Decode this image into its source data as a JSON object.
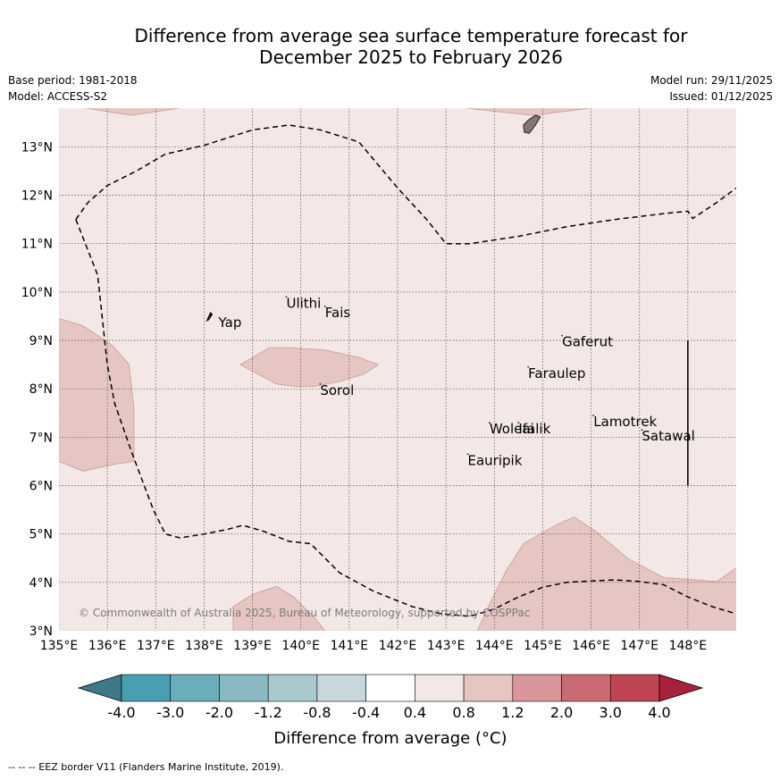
{
  "title_line1": "Difference from average sea surface temperature forecast for",
  "title_line2": "December 2025 to February 2026",
  "meta": {
    "base_period": "Base period: 1981-2018",
    "model": "Model: ACCESS-S2",
    "model_run": "Model run: 29/11/2025",
    "issued": "Issued: 01/12/2025"
  },
  "map": {
    "lon_range": [
      135,
      149
    ],
    "lat_range": [
      3,
      13.8
    ],
    "lon_ticks": [
      {
        "value": 135,
        "label": "135°E"
      },
      {
        "value": 136,
        "label": "136°E"
      },
      {
        "value": 137,
        "label": "137°E"
      },
      {
        "value": 138,
        "label": "138°E"
      },
      {
        "value": 139,
        "label": "139°E"
      },
      {
        "value": 140,
        "label": "140°E"
      },
      {
        "value": 141,
        "label": "141°E"
      },
      {
        "value": 142,
        "label": "142°E"
      },
      {
        "value": 143,
        "label": "143°E"
      },
      {
        "value": 144,
        "label": "144°E"
      },
      {
        "value": 145,
        "label": "145°E"
      },
      {
        "value": 146,
        "label": "146°E"
      },
      {
        "value": 147,
        "label": "147°E"
      },
      {
        "value": 148,
        "label": "148°E"
      }
    ],
    "lat_ticks": [
      {
        "value": 3,
        "label": "3°N"
      },
      {
        "value": 4,
        "label": "4°N"
      },
      {
        "value": 5,
        "label": "5°N"
      },
      {
        "value": 6,
        "label": "6°N"
      },
      {
        "value": 7,
        "label": "7°N"
      },
      {
        "value": 8,
        "label": "8°N"
      },
      {
        "value": 9,
        "label": "9°N"
      },
      {
        "value": 10,
        "label": "10°N"
      },
      {
        "value": 11,
        "label": "11°N"
      },
      {
        "value": 12,
        "label": "12°N"
      },
      {
        "value": 13,
        "label": "13°N"
      }
    ],
    "background_category": "0.4 to 0.8",
    "background_color": "#f4e8e7",
    "anomaly_color": "#e6c6c3",
    "anomaly_regions": [
      {
        "name": "west",
        "range": "0.8 to 1.2",
        "points": [
          [
            135,
            9.45
          ],
          [
            135.5,
            9.3
          ],
          [
            136.1,
            8.9
          ],
          [
            136.45,
            8.5
          ],
          [
            136.55,
            7.6
          ],
          [
            136.55,
            6.5
          ],
          [
            136.2,
            6.45
          ],
          [
            135.5,
            6.3
          ],
          [
            135,
            6.5
          ]
        ]
      },
      {
        "name": "central",
        "range": "0.8 to 1.2",
        "points": [
          [
            138.75,
            8.5
          ],
          [
            139.35,
            8.85
          ],
          [
            139.75,
            8.85
          ],
          [
            140.5,
            8.8
          ],
          [
            141.2,
            8.65
          ],
          [
            141.6,
            8.5
          ],
          [
            141.3,
            8.3
          ],
          [
            140.8,
            8.15
          ],
          [
            140.3,
            8.05
          ],
          [
            139.9,
            8.05
          ],
          [
            139.5,
            8.1
          ]
        ]
      },
      {
        "name": "southwest",
        "range": "0.8 to 1.2",
        "points": [
          [
            138.6,
            3
          ],
          [
            138.6,
            3.5
          ],
          [
            139,
            3.75
          ],
          [
            139.5,
            3.92
          ],
          [
            139.85,
            3.7
          ],
          [
            140.3,
            3.25
          ],
          [
            140.5,
            3
          ]
        ]
      },
      {
        "name": "southeast",
        "range": "0.8 to 1.2",
        "points": [
          [
            143.65,
            3
          ],
          [
            143.9,
            3.55
          ],
          [
            144.25,
            4.25
          ],
          [
            144.6,
            4.8
          ],
          [
            145.3,
            5.2
          ],
          [
            145.65,
            5.35
          ],
          [
            146.1,
            5.05
          ],
          [
            146.75,
            4.5
          ],
          [
            147.5,
            4.1
          ],
          [
            148.6,
            4.02
          ],
          [
            149,
            4.3
          ],
          [
            149,
            3
          ]
        ]
      },
      {
        "name": "top-strip",
        "range": "0.8 to 1.2",
        "points": [
          [
            135.55,
            13.8
          ],
          [
            136.5,
            13.65
          ],
          [
            137.5,
            13.8
          ]
        ]
      },
      {
        "name": "top-strip-east",
        "range": "0.8 to 1.2",
        "points": [
          [
            143.4,
            13.8
          ],
          [
            144.8,
            13.65
          ],
          [
            146,
            13.8
          ]
        ]
      }
    ],
    "eez_border": [
      [
        135.35,
        11.5
      ],
      [
        135.6,
        11.85
      ],
      [
        136,
        12.2
      ],
      [
        136.6,
        12.5
      ],
      [
        137.2,
        12.85
      ],
      [
        138,
        13.03
      ],
      [
        139,
        13.35
      ],
      [
        139.75,
        13.45
      ],
      [
        140.4,
        13.35
      ],
      [
        141.2,
        13.1
      ],
      [
        142,
        12.15
      ],
      [
        142.6,
        11.5
      ],
      [
        143,
        11
      ],
      [
        143.5,
        11
      ],
      [
        144.5,
        11.15
      ],
      [
        145.5,
        11.35
      ],
      [
        146.5,
        11.5
      ],
      [
        147.5,
        11.62
      ],
      [
        148,
        11.67
      ],
      [
        148.1,
        11.52
      ],
      [
        148.6,
        11.85
      ],
      [
        149,
        12.15
      ]
    ],
    "eez_border_west": [
      [
        135.35,
        11.5
      ],
      [
        135.8,
        10.35
      ],
      [
        136,
        8.5
      ],
      [
        136.15,
        7.7
      ],
      [
        136.5,
        6.7
      ],
      [
        136.95,
        5.5
      ],
      [
        137.2,
        5
      ],
      [
        137.5,
        4.92
      ],
      [
        138,
        5
      ],
      [
        138.5,
        5.1
      ],
      [
        138.8,
        5.18
      ],
      [
        139.25,
        5.05
      ],
      [
        139.75,
        4.85
      ],
      [
        140.2,
        4.8
      ],
      [
        140.4,
        4.6
      ],
      [
        140.8,
        4.2
      ],
      [
        141.5,
        3.82
      ],
      [
        142.3,
        3.5
      ],
      [
        142.9,
        3.35
      ],
      [
        143.5,
        3.3
      ],
      [
        144,
        3.45
      ],
      [
        144.5,
        3.7
      ],
      [
        145,
        3.9
      ],
      [
        145.5,
        4
      ],
      [
        146,
        4.03
      ],
      [
        146.5,
        4.05
      ],
      [
        147,
        4.02
      ],
      [
        147.5,
        3.95
      ],
      [
        148,
        3.7
      ],
      [
        148.5,
        3.5
      ],
      [
        149,
        3.35
      ]
    ],
    "vertical_line": {
      "lon": 148,
      "lat_from": 6,
      "lat_to": 9
    },
    "islands": [
      {
        "name": "Yap",
        "lon": 138.15,
        "lat": 9.5,
        "label_dx": 8,
        "label_dy": 8
      },
      {
        "name": "Ulithi",
        "lon": 139.7,
        "lat": 9.9,
        "label_dx": 0,
        "label_dy": 8
      },
      {
        "name": "Fais",
        "lon": 140.5,
        "lat": 9.7,
        "label_dx": 0,
        "label_dy": 8
      },
      {
        "name": "Sorol",
        "lon": 140.4,
        "lat": 8.1,
        "label_dx": 0,
        "label_dy": 8
      },
      {
        "name": "Gaferut",
        "lon": 145.4,
        "lat": 9.1,
        "label_dx": 0,
        "label_dy": 8
      },
      {
        "name": "Faraulep",
        "lon": 144.7,
        "lat": 8.45,
        "label_dx": 0,
        "label_dy": 8
      },
      {
        "name": "Woleai",
        "lon": 143.9,
        "lat": 7.3,
        "label_dx": 0,
        "label_dy": 8
      },
      {
        "name": "Ifalik",
        "lon": 144.5,
        "lat": 7.3,
        "label_dx": 0,
        "label_dy": 8
      },
      {
        "name": "Lamotrek",
        "lon": 146.05,
        "lat": 7.45,
        "label_dx": 0,
        "label_dy": 8
      },
      {
        "name": "Satawal",
        "lon": 147.05,
        "lat": 7.15,
        "label_dx": 0,
        "label_dy": 8
      },
      {
        "name": "Eauripik",
        "lon": 143.45,
        "lat": 6.65,
        "label_dx": 0,
        "label_dy": 8
      }
    ],
    "guam": [
      [
        144.6,
        13.45
      ],
      [
        144.7,
        13.55
      ],
      [
        144.85,
        13.65
      ],
      [
        144.95,
        13.62
      ],
      [
        144.85,
        13.45
      ],
      [
        144.72,
        13.28
      ],
      [
        144.62,
        13.3
      ]
    ],
    "copyright": "© Commonwealth of Australia 2025, Bureau of Meteorology, supported by COSPPac"
  },
  "colorbar": {
    "colors": [
      "#3c7a87",
      "#46a0b2",
      "#6aadbb",
      "#8ab9c4",
      "#aac9cf",
      "#c8d7db",
      "#ffffff",
      "#f4e8e7",
      "#e6c6c3",
      "#d8959a",
      "#cb6a73",
      "#bf4555",
      "#a8203a"
    ],
    "labels": [
      "-4.0",
      "-3.0",
      "-2.0",
      "-1.2",
      "-0.8",
      "-0.4",
      "0.4",
      "0.8",
      "1.2",
      "2.0",
      "3.0",
      "4.0"
    ],
    "title": "Difference from average (°C)"
  },
  "footer": "--  --  -- EEZ border V11 (Flanders Marine Institute, 2019)."
}
